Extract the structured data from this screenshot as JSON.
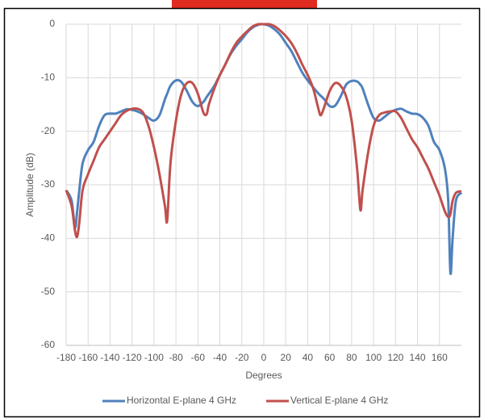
{
  "chart_data": {
    "type": "line",
    "x_label": "Degrees",
    "y_label": "Amplitude (dB)",
    "x": [
      -180,
      -175,
      -172,
      -170,
      -168,
      -165,
      -160,
      -155,
      -150,
      -145,
      -140,
      -135,
      -130,
      -125,
      -120,
      -115,
      -110,
      -105,
      -100,
      -95,
      -90,
      -88,
      -85,
      -80,
      -75,
      -70,
      -65,
      -60,
      -55,
      -52,
      -50,
      -45,
      -40,
      -35,
      -30,
      -25,
      -20,
      -15,
      -10,
      -5,
      0,
      5,
      10,
      15,
      20,
      25,
      30,
      35,
      40,
      45,
      50,
      52,
      55,
      60,
      65,
      70,
      75,
      80,
      85,
      88,
      90,
      95,
      100,
      105,
      110,
      115,
      120,
      125,
      130,
      135,
      140,
      145,
      150,
      155,
      160,
      165,
      168,
      170,
      172,
      175,
      180
    ],
    "series": [
      {
        "name": "Horizontal E-plane 4 GHz",
        "color": "#4f81bd",
        "values": [
          -31,
          -33,
          -38,
          -35,
          -31,
          -26,
          -23.5,
          -22,
          -19,
          -17,
          -16.7,
          -16.7,
          -16.3,
          -15.9,
          -16,
          -16.3,
          -16.8,
          -17.5,
          -18,
          -17,
          -14,
          -13,
          -11.5,
          -10.5,
          -10.8,
          -12.5,
          -14.5,
          -15.3,
          -14.5,
          -13.6,
          -13,
          -11.5,
          -9.5,
          -7.5,
          -5.5,
          -4,
          -2.8,
          -1.5,
          -0.6,
          -0.1,
          0,
          -0.3,
          -1,
          -2,
          -3.5,
          -5,
          -7,
          -9,
          -10.5,
          -11.8,
          -13,
          -13.4,
          -14,
          -15.3,
          -15.2,
          -13.5,
          -11.3,
          -10.6,
          -10.7,
          -11.3,
          -12,
          -15,
          -17.5,
          -18,
          -17.3,
          -16.5,
          -16,
          -15.8,
          -16.3,
          -16.7,
          -16.8,
          -17.5,
          -19,
          -22,
          -23.5,
          -27,
          -33,
          -46.5,
          -40,
          -33,
          -31.5
        ]
      },
      {
        "name": "Vertical E-plane 4 GHz",
        "color": "#c0504d",
        "values": [
          -31,
          -34,
          -38.5,
          -39.7,
          -37,
          -31,
          -28,
          -25.5,
          -23,
          -21.5,
          -20,
          -18.5,
          -17,
          -16.2,
          -15.8,
          -15.8,
          -16.5,
          -19,
          -23,
          -28,
          -34,
          -36.7,
          -26,
          -18,
          -13,
          -11,
          -11,
          -13,
          -16.5,
          -16.8,
          -15,
          -12,
          -9.5,
          -7.5,
          -5.3,
          -3.5,
          -2.3,
          -1.3,
          -0.4,
          0,
          0,
          0,
          -0.4,
          -1.2,
          -2.2,
          -3.5,
          -5.3,
          -7.5,
          -9.5,
          -12,
          -16,
          -17,
          -15.5,
          -12.5,
          -11,
          -11.5,
          -13.5,
          -18,
          -27,
          -34.7,
          -31,
          -24,
          -19,
          -17,
          -16.5,
          -16.3,
          -16.3,
          -17.5,
          -19.5,
          -21.5,
          -23,
          -25,
          -27,
          -29.5,
          -32,
          -35,
          -36,
          -35.5,
          -33,
          -31.5,
          -31.2
        ]
      }
    ],
    "xlim": [
      -180,
      180
    ],
    "xticks": [
      -180,
      -160,
      -140,
      -120,
      -100,
      -80,
      -60,
      -40,
      -20,
      0,
      20,
      40,
      60,
      80,
      100,
      120,
      140,
      160
    ],
    "ylim": [
      -60,
      0
    ],
    "yticks": [
      -60,
      -50,
      -40,
      -30,
      -20,
      -10,
      0
    ],
    "grid": true,
    "legend": "bottom"
  }
}
